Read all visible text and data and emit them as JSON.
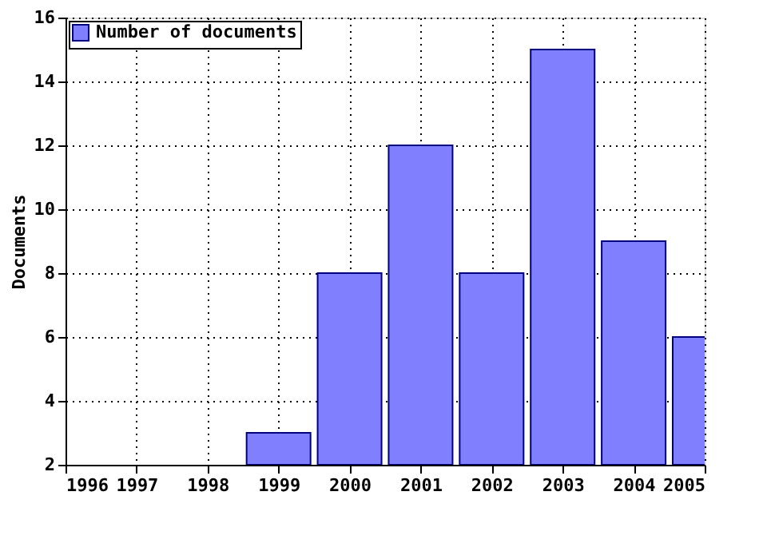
{
  "chart_data": {
    "type": "bar",
    "ylabel": "Documents",
    "x": [
      1999,
      2000,
      2001,
      2002,
      2003,
      2004,
      2005
    ],
    "series": [
      {
        "name": "Number of documents",
        "color": "#8080ff",
        "values": [
          3,
          8,
          12,
          8,
          15,
          9,
          6
        ]
      }
    ],
    "xlim": [
      1996,
      2005
    ],
    "xticks": [
      1996,
      1997,
      1998,
      1999,
      2000,
      2001,
      2002,
      2003,
      2004,
      2005
    ],
    "ylim": [
      2,
      16
    ],
    "yticks": [
      2,
      4,
      6,
      8,
      10,
      12,
      14,
      16
    ],
    "grid": true,
    "legend": "top left"
  }
}
